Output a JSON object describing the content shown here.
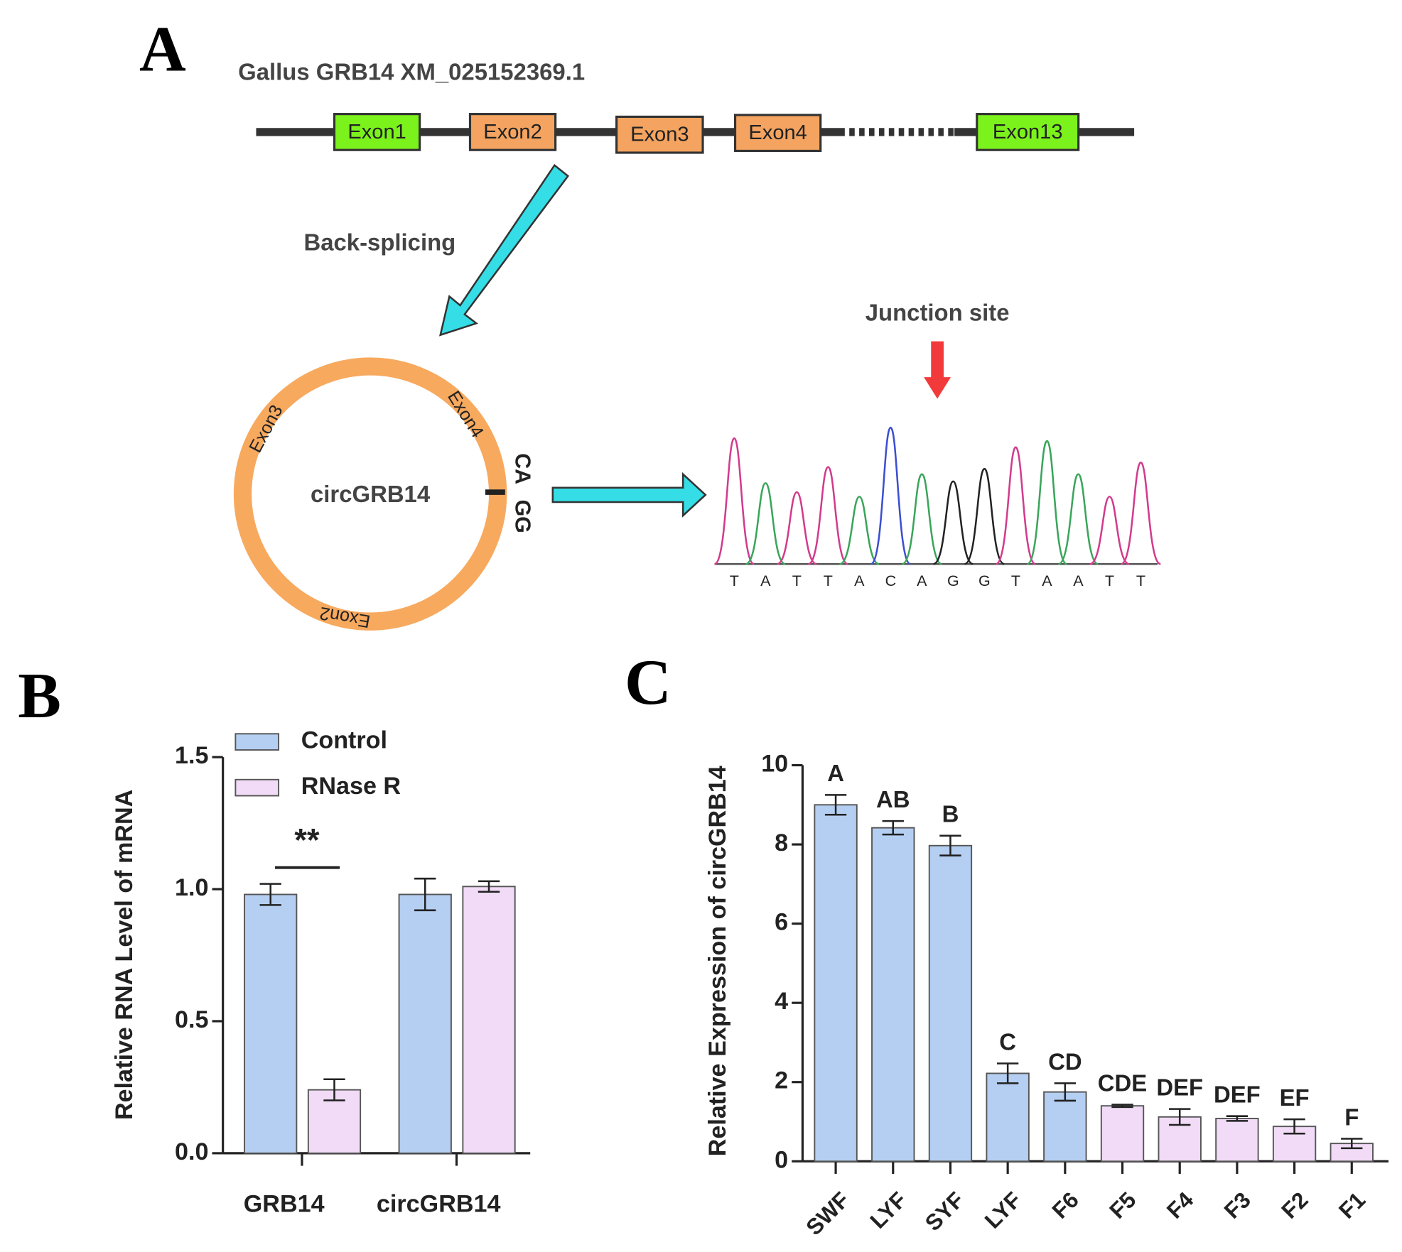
{
  "panel_labels": [
    "A",
    "B",
    "C"
  ],
  "diagram": {
    "gene_label": "Gallus GRB14  XM_025152369.1",
    "exons": [
      {
        "label": "Exon1",
        "color": "#7cf21c"
      },
      {
        "label": "Exon2",
        "color": "#f4a460"
      },
      {
        "label": "Exon3",
        "color": "#f4a460"
      },
      {
        "label": "Exon4",
        "color": "#f4a460"
      },
      {
        "label": "Exon13",
        "color": "#7cf21c"
      }
    ],
    "back_splicing": "Back-splicing",
    "circ_label": "circGRB14",
    "circ_exons": [
      "Exon3",
      "Exon4",
      "Exon2"
    ],
    "junction_left": "CA",
    "junction_right": "GG",
    "junction_site": "Junction site",
    "sequence": [
      "T",
      "A",
      "T",
      "T",
      "A",
      "C",
      "A",
      "G",
      "G",
      "T",
      "A",
      "A",
      "T",
      "T"
    ]
  },
  "chart_data": [
    {
      "type": "bar",
      "y_label": "Relative RNA Level of mRNA",
      "categories": [
        "GRB14",
        "circGRB14"
      ],
      "series": [
        {
          "name": "Control",
          "color": "#b5cff2",
          "values": [
            0.98,
            0.98
          ],
          "errors": [
            0.04,
            0.06
          ]
        },
        {
          "name": "RNase R",
          "color": "#f1dbf6",
          "values": [
            0.24,
            1.01
          ],
          "errors": [
            0.04,
            0.02
          ]
        }
      ],
      "annotation": "**",
      "ylim": [
        0,
        1.5
      ],
      "yticks": [
        {
          "value": 0,
          "label": "0.0"
        },
        {
          "value": 0.5,
          "label": "0.5"
        },
        {
          "value": 1,
          "label": "1.0"
        },
        {
          "value": 1.5,
          "label": "1.5"
        }
      ],
      "legend": "top-left"
    },
    {
      "type": "bar",
      "y_label": "Relative Expression of circGRB14",
      "categories": [
        "SWF",
        "LYF",
        "SYF",
        "LYF",
        "F6",
        "F5",
        "F4",
        "F3",
        "F2",
        "F1"
      ],
      "values": [
        9.0,
        8.42,
        7.97,
        2.22,
        1.75,
        1.4,
        1.12,
        1.08,
        0.88,
        0.45
      ],
      "errors": [
        0.25,
        0.17,
        0.25,
        0.25,
        0.22,
        0.03,
        0.2,
        0.06,
        0.18,
        0.12
      ],
      "value_labels": [
        "A",
        "AB",
        "B",
        "C",
        "CD",
        "CDE",
        "DEF",
        "DEF",
        "EF",
        "F"
      ],
      "colors": [
        "#b5cff2",
        "#b5cff2",
        "#b5cff2",
        "#b5cff2",
        "#b5cff2",
        "#f1dbf6",
        "#f1dbf6",
        "#f1dbf6",
        "#f1dbf6",
        "#f1dbf6"
      ],
      "ylim": [
        0,
        10
      ],
      "yticks": [
        0,
        2,
        4,
        6,
        8,
        10
      ]
    }
  ]
}
